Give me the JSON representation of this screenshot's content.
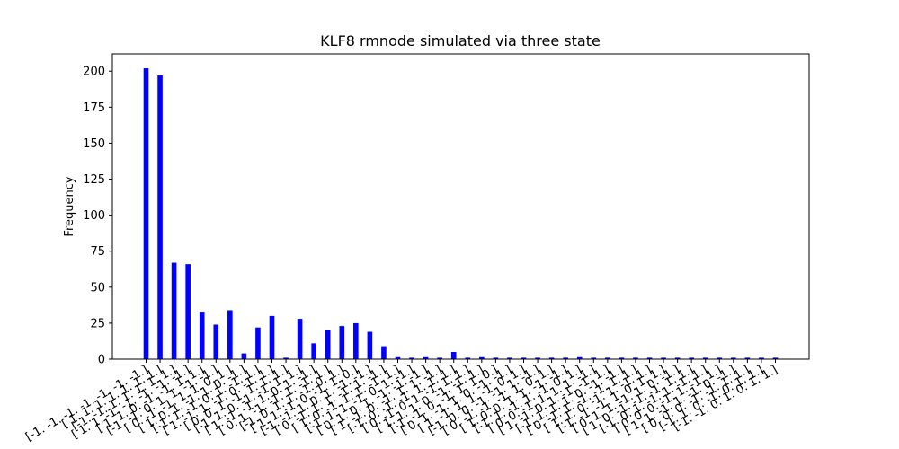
{
  "chart_data": {
    "type": "bar",
    "title": "KLF8 rmnode simulated via three state",
    "xlabel": "",
    "ylabel": "Frequency",
    "ylim": [
      0,
      212
    ],
    "yticks": [
      0,
      25,
      50,
      75,
      100,
      125,
      150,
      175,
      200
    ],
    "grid": false,
    "bar_color": "#0000ff",
    "categories": [
      "[-1. -1. -1. -1. -1. -1. -1.]",
      "[ 1.  1.  1.  1.  1.  1.  1.]",
      "[-1. -1.  1.  1.  1.  1.  1.]",
      "[ 1.  1. -1. -1. -1. -1. -1.]",
      "[ 1.  1.  0. -1. -1.  1.  1.]",
      "[-1. -1.  0.  1.  1. -1. -1.]",
      "[ 0. -1. -1.  1.  1.  0.  1.]",
      "[ 1.  0.  1. -1.  1.  0. -1.]",
      "[-1.  1. -1.  0.  1. -1.  1.]",
      "[ 1. -1.  1. -1.  0. -1.  1.]",
      "[ 0.  0.  1. -1.  1.  1.  1.]",
      "[-1.  1.  0. -1. -1.  1.  1.]",
      "[ 1. -1. -1.  1.  0.  1. -1.]",
      "[ 0.  1. -1. -1.  1. -1.  1.]",
      "[-1.  0.  1.  1. -1.  0.  1.]",
      "[ 1.  1. -1.  0. -1.  1.  0.]",
      "[-1. -1.  1.  0.  1. -1. -1.]",
      "[ 0. -1.  1.  1. -1.  1. -1.]",
      "[ 1.  0. -1.  1.  1. -1.  1.]",
      "[-1.  1.  1. -1.  0.  1. -1.]",
      "[ 0.  1.  0.  1. -1. -1. -1.]",
      "[ 1. -1.  0. -1.  1.  1. -1.]",
      "[-1.  0. -1. -1.  1.  1.  1.]",
      "[ 0. -1.  0.  1. -1.  1.  1.]",
      "[ 1.  1.  1.  0. -1. -1.  1.]",
      "[-1. -1.  0. -1.  1.  1.  0.]",
      "[ 0.  1. -1.  1.  0. -1. -1.]",
      "[ 1. -1.  1.  1. -1.  0.  1.]",
      "[-1.  0.  0. -1. -1.  1. -1.]",
      "[ 0. -1. -1. -1.  1.  0.  1.]",
      "[ 1.  0.  0.  1.  1. -1. -1.]",
      "[-1.  1. -1.  1. -1.  0.  1.]",
      "[ 0.  0. -1.  1.  1.  1. -1.]",
      "[ 1. -1.  0.  1. -1. -1.  1.]",
      "[-1.  1.  1.  1.  0. -1. -1.]",
      "[ 0. -1.  1. -1. -1.  1.  1.]",
      "[ 1.  1.  0. -1.  1. -1.  1.]",
      "[-1. -1. -1.  1.  0.  1.  1.]",
      "[ 0.  1.  1. -1.  1.  0. -1.]",
      "[ 1.  0. -1. -1. -1.  1.  1.]",
      "[-1.  0.  1. -1.  1. -1.  1.]",
      "[ 0.  0.  0. -1.  1. -1.  1.]",
      "[ 1.  1. -1.  1. -1.  0. -1.]",
      "[ 0.  0.  0. -1. -1.  1.  1.]",
      "[-1.  1.  0. -1.  0.  1.  1.]",
      "[-1. -1.  0.  1.  0.  1.  1.]"
    ],
    "values": [
      202,
      197,
      67,
      66,
      33,
      24,
      34,
      4,
      22,
      30,
      1,
      28,
      11,
      20,
      23,
      25,
      19,
      9,
      2,
      1,
      2,
      1,
      5,
      1,
      2,
      1,
      1,
      1,
      1,
      1,
      1,
      2,
      1,
      1,
      1,
      1,
      1,
      1,
      1,
      1,
      1,
      1,
      1,
      1,
      1,
      1
    ]
  }
}
